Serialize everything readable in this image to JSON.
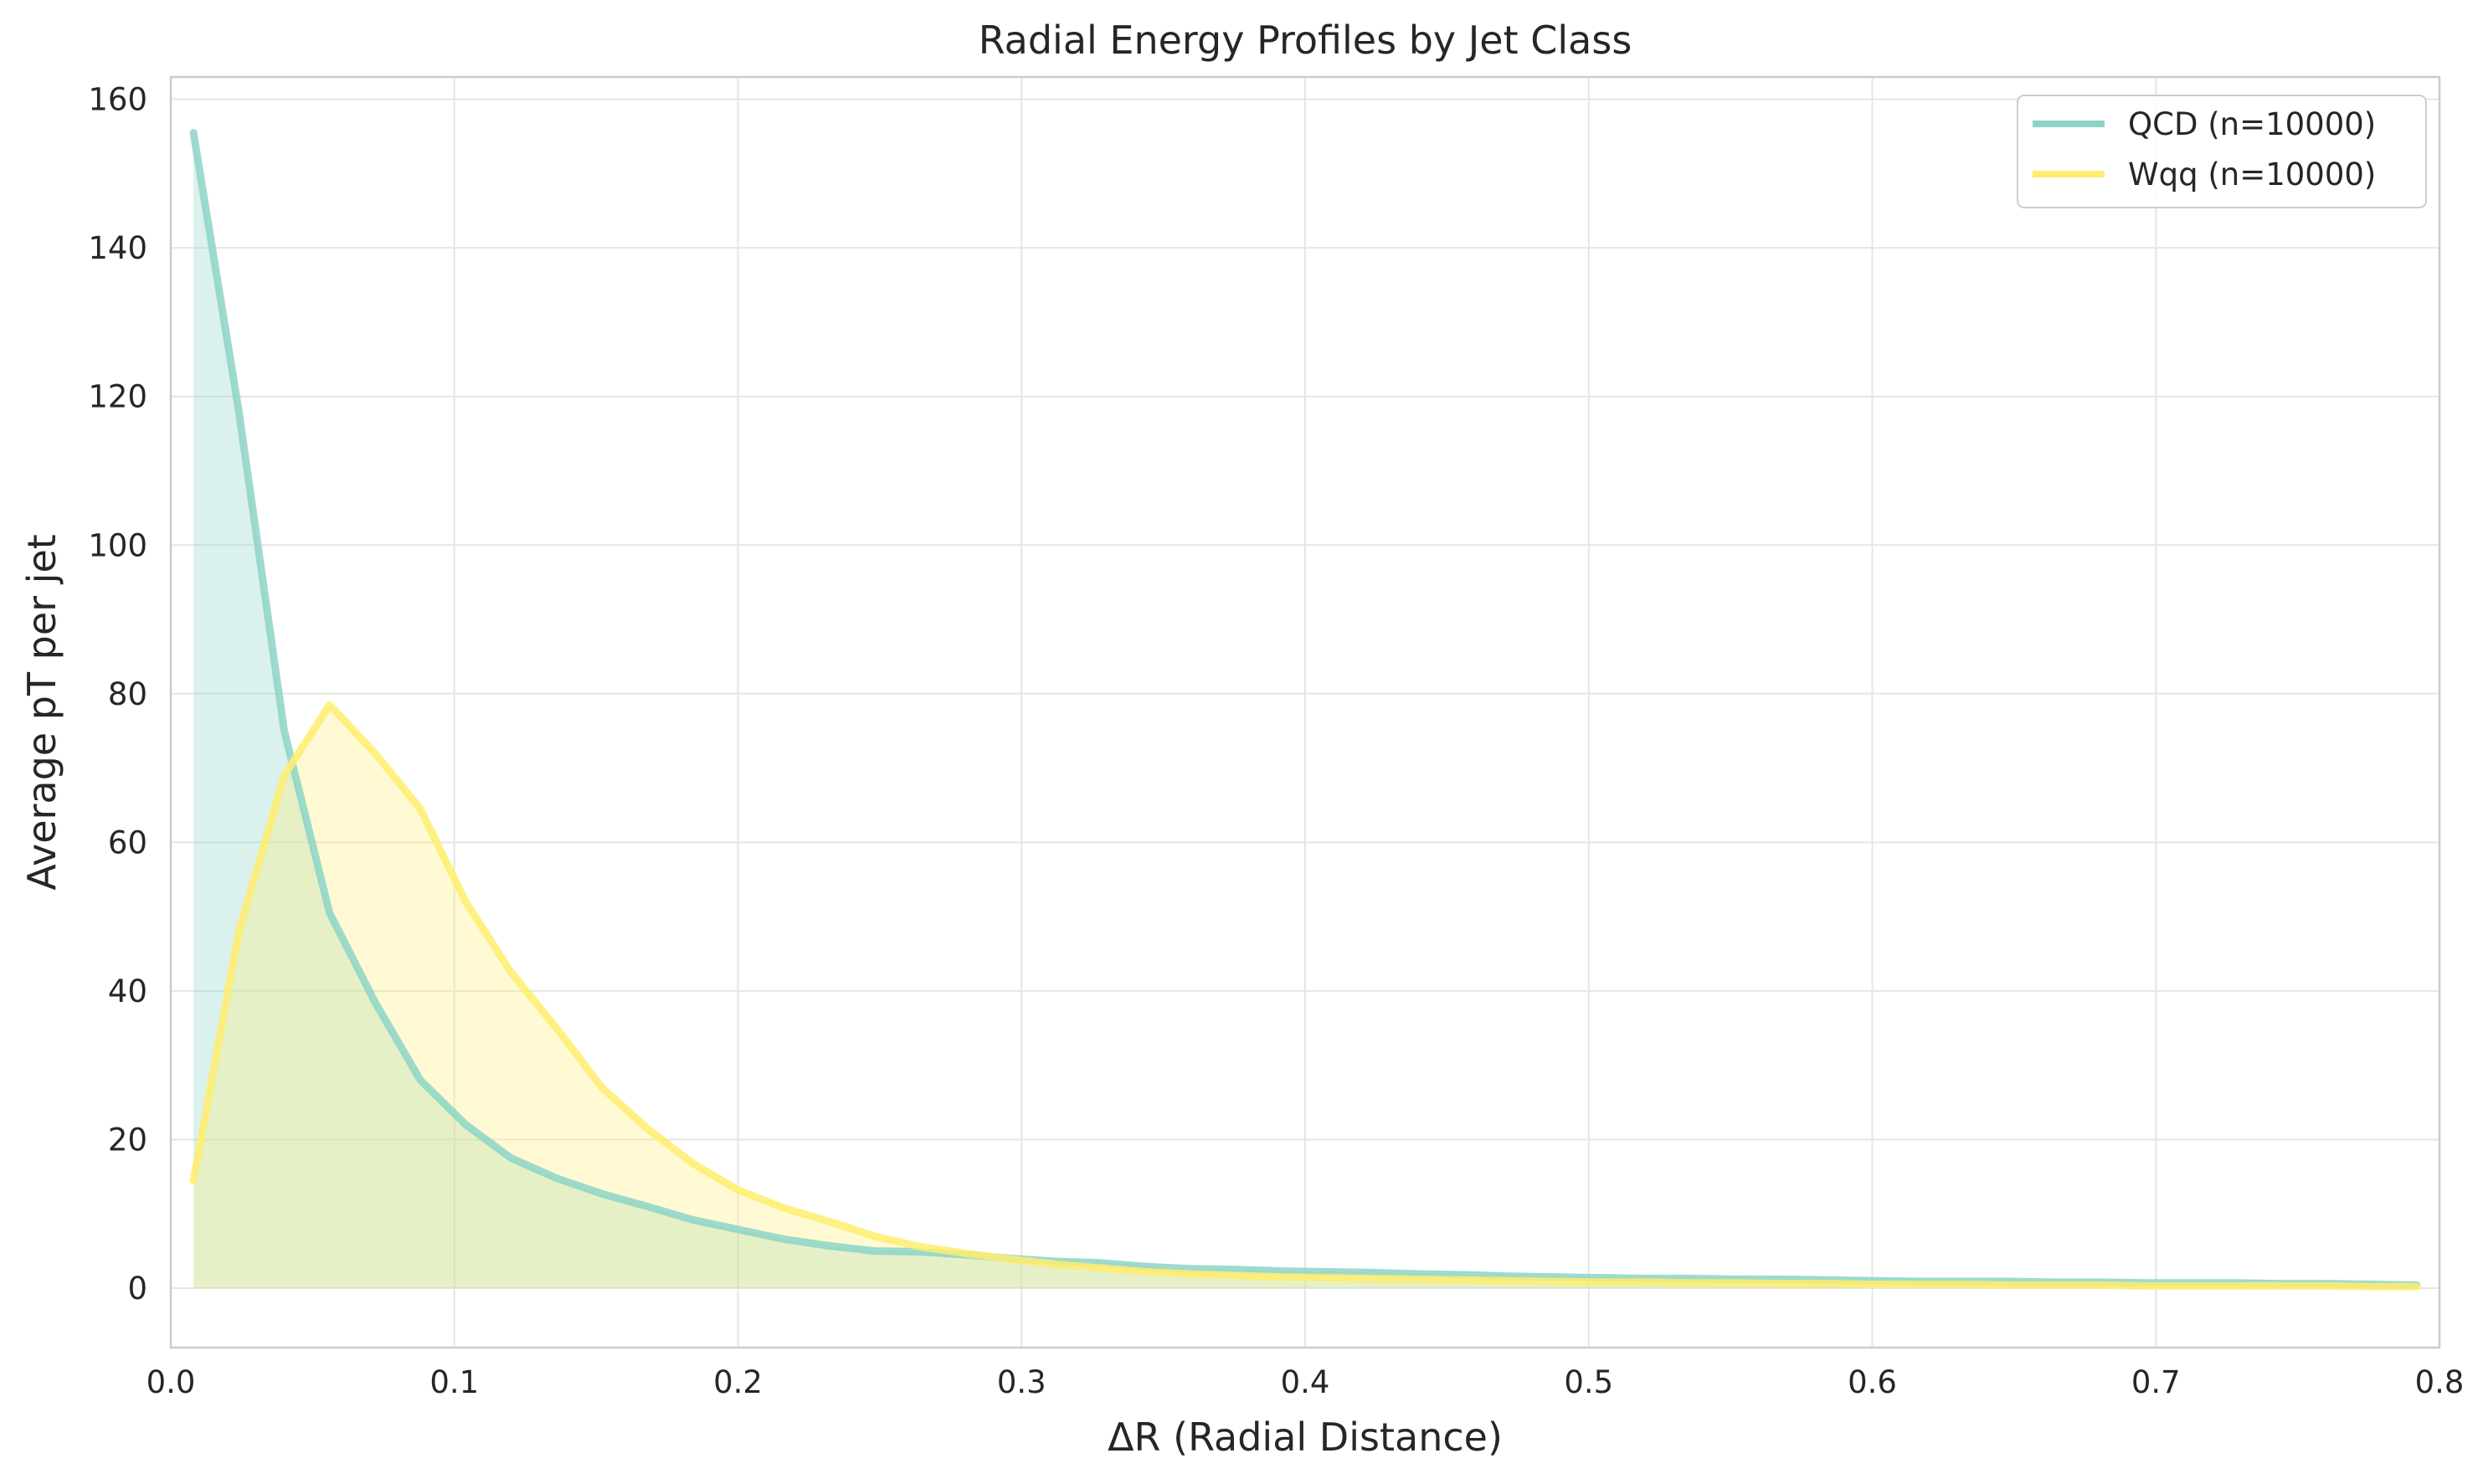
{
  "chart_data": {
    "type": "area",
    "title": "Radial Energy Profiles by Jet Class",
    "xlabel": "ΔR (Radial Distance)",
    "ylabel": "Average pT per jet",
    "xlim": [
      0,
      0.8
    ],
    "ylim": [
      -8,
      163
    ],
    "xticks": [
      0.0,
      0.1,
      0.2,
      0.3,
      0.4,
      0.5,
      0.6,
      0.7,
      0.8
    ],
    "xtick_labels": [
      "0.0",
      "0.1",
      "0.2",
      "0.3",
      "0.4",
      "0.5",
      "0.6",
      "0.7",
      "0.8"
    ],
    "yticks": [
      0,
      20,
      40,
      60,
      80,
      100,
      120,
      140,
      160
    ],
    "ytick_labels": [
      "0",
      "20",
      "40",
      "60",
      "80",
      "100",
      "120",
      "140",
      "160"
    ],
    "grid": true,
    "legend_position": "top-right",
    "x": [
      0.008,
      0.024,
      0.04,
      0.056,
      0.072,
      0.088,
      0.104,
      0.12,
      0.136,
      0.152,
      0.168,
      0.184,
      0.2,
      0.216,
      0.232,
      0.248,
      0.264,
      0.28,
      0.296,
      0.312,
      0.328,
      0.344,
      0.36,
      0.376,
      0.392,
      0.408,
      0.424,
      0.44,
      0.456,
      0.472,
      0.488,
      0.504,
      0.52,
      0.536,
      0.552,
      0.568,
      0.584,
      0.6,
      0.616,
      0.632,
      0.648,
      0.664,
      0.68,
      0.696,
      0.712,
      0.728,
      0.744,
      0.76,
      0.776,
      0.792
    ],
    "series": [
      {
        "name": "QCD (n=10000)",
        "color": "#8dd3c7",
        "values": [
          155.5,
          118.0,
          75.0,
          50.5,
          38.5,
          28.0,
          22.0,
          17.5,
          14.8,
          12.7,
          11.0,
          9.2,
          7.9,
          6.6,
          5.7,
          5.0,
          4.9,
          4.5,
          4.0,
          3.6,
          3.4,
          2.9,
          2.6,
          2.5,
          2.3,
          2.2,
          2.1,
          1.9,
          1.8,
          1.6,
          1.5,
          1.4,
          1.3,
          1.3,
          1.2,
          1.2,
          1.1,
          1.0,
          0.9,
          0.9,
          0.9,
          0.8,
          0.8,
          0.7,
          0.7,
          0.7,
          0.6,
          0.6,
          0.5,
          0.4
        ]
      },
      {
        "name": "Wqq (n=10000)",
        "color": "#ffed6f",
        "values": [
          14.5,
          48.0,
          69.0,
          78.5,
          72.0,
          64.5,
          52.0,
          42.5,
          35.0,
          27.0,
          21.5,
          16.8,
          13.2,
          10.8,
          9.0,
          7.0,
          5.6,
          4.7,
          3.9,
          3.2,
          2.7,
          2.2,
          1.9,
          1.7,
          1.5,
          1.4,
          1.3,
          1.2,
          1.1,
          1.0,
          0.9,
          0.8,
          0.8,
          0.7,
          0.7,
          0.6,
          0.6,
          0.5,
          0.5,
          0.5,
          0.4,
          0.4,
          0.4,
          0.3,
          0.3,
          0.3,
          0.3,
          0.3,
          0.2,
          0.2
        ]
      }
    ]
  }
}
